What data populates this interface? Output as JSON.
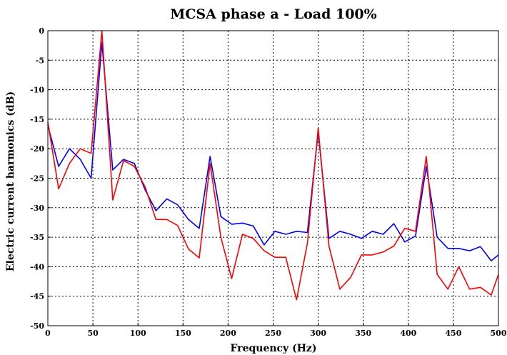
{
  "chart_data": {
    "type": "line",
    "title": "MCSA phase a - Load 100%",
    "xlabel": "Frequency (Hz)",
    "ylabel": "Electric current harmonics (dB)",
    "xlim": [
      0,
      500
    ],
    "ylim": [
      -50,
      0
    ],
    "xticks": [
      0,
      50,
      100,
      150,
      200,
      250,
      300,
      350,
      400,
      450,
      500
    ],
    "yticks": [
      0,
      -5,
      -10,
      -15,
      -20,
      -25,
      -30,
      -35,
      -40,
      -45,
      -50
    ],
    "grid": true,
    "series": [
      {
        "color": "#0000ff",
        "x": [
          0,
          12,
          24,
          36,
          48,
          60,
          72,
          84,
          96,
          108,
          120,
          132,
          144,
          156,
          168,
          180,
          192,
          204,
          216,
          228,
          240,
          252,
          264,
          276,
          288,
          300,
          312,
          324,
          336,
          348,
          360,
          372,
          384,
          396,
          408,
          420,
          432,
          444,
          456,
          468,
          480,
          492,
          500
        ],
        "y": [
          -16,
          -23,
          -20,
          -21.8,
          -25,
          -2,
          -23.6,
          -21.8,
          -22.5,
          -27,
          -30.5,
          -28.5,
          -29.5,
          -32,
          -33.5,
          -21.3,
          -31.5,
          -32.8,
          -32.6,
          -33.1,
          -36.3,
          -34,
          -34.5,
          -34,
          -34.2,
          -17.2,
          -35.2,
          -34,
          -34.5,
          -35.2,
          -34,
          -34.5,
          -32.7,
          -35.8,
          -34.8,
          -23,
          -35,
          -36.9,
          -36.9,
          -37.3,
          -36.6,
          -39,
          -38
        ]
      },
      {
        "color": "#ff0000",
        "x": [
          0,
          12,
          24,
          36,
          48,
          60,
          72,
          84,
          96,
          108,
          120,
          132,
          144,
          156,
          168,
          180,
          192,
          204,
          216,
          228,
          240,
          252,
          264,
          276,
          288,
          300,
          312,
          324,
          336,
          348,
          360,
          372,
          384,
          396,
          408,
          420,
          432,
          444,
          456,
          468,
          480,
          492,
          500
        ],
        "y": [
          -15.5,
          -26.8,
          -22.5,
          -20,
          -20.8,
          0,
          -28.7,
          -22,
          -23,
          -26.5,
          -32,
          -32,
          -33,
          -37,
          -38.5,
          -22.5,
          -35,
          -42,
          -34.5,
          -35.2,
          -37.3,
          -38.4,
          -38.4,
          -45.6,
          -36,
          -16.5,
          -36.5,
          -43.8,
          -41.8,
          -38,
          -38,
          -37.5,
          -36.5,
          -33.5,
          -34,
          -21.3,
          -41.3,
          -43.8,
          -40,
          -43.8,
          -43.5,
          -44.8,
          -41.3
        ]
      }
    ]
  }
}
